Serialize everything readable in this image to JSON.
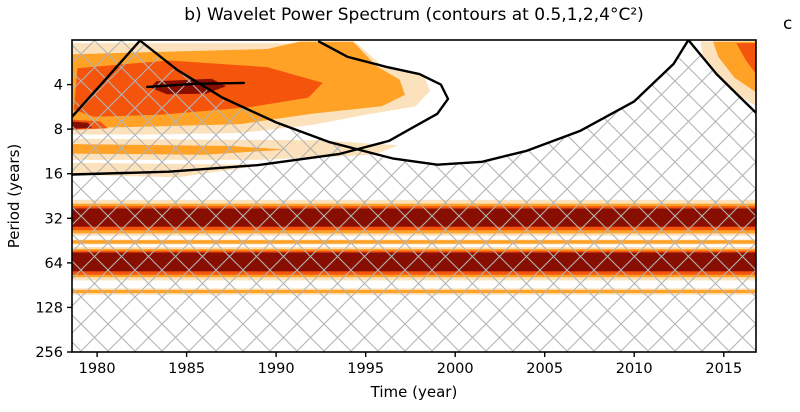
{
  "page": {
    "partial_next_panel_label": "c",
    "background_color": "#ffffff"
  },
  "chart_data": {
    "type": "heatmap",
    "subtype": "wavelet-power-spectrum-contour",
    "title": "b) Wavelet Power Spectrum (contours at 0.5,1,2,4°C²)",
    "xlabel": "Time (year)",
    "ylabel": "Period (years)",
    "x_ticks": [
      1980,
      1985,
      1990,
      1995,
      2000,
      2005,
      2010,
      2015
    ],
    "x_range": [
      1978.6,
      2016.8
    ],
    "y_ticks": [
      4,
      8,
      16,
      32,
      64,
      128,
      256
    ],
    "y_range": [
      2,
      256
    ],
    "y_scale": "log2",
    "y_axis_inverted": true,
    "contour_levels_degC2": [
      0.5,
      1,
      2,
      4
    ],
    "palette": {
      "0.5": "#FBE2BC",
      "1": "#FFA226",
      "2": "#F4540C",
      "4": "#870E00"
    },
    "hatch": {
      "style": "diagonal-crosshatch",
      "color": "#b3b3b3",
      "spacing_px": 27
    },
    "axis_color": "#000000",
    "grid": false,
    "legend": false,
    "bands_full_width": [
      {
        "level": "0.5",
        "period_range": [
          24,
          42
        ]
      },
      {
        "level": "1",
        "period_range": [
          25.5,
          40.5
        ]
      },
      {
        "level": "2",
        "period_range": [
          26.5,
          38.5
        ]
      },
      {
        "level": "4",
        "period_range": [
          27.5,
          36.5
        ]
      },
      {
        "level": "0.5",
        "period_range": [
          44.5,
          48
        ]
      },
      {
        "level": "1",
        "period_range": [
          45,
          47.5
        ]
      },
      {
        "level": "0.5",
        "period_range": [
          50,
          84
        ]
      },
      {
        "level": "1",
        "period_range": [
          51.5,
          80
        ]
      },
      {
        "level": "2",
        "period_range": [
          53,
          77
        ]
      },
      {
        "level": "4",
        "period_range": [
          54.5,
          73
        ]
      },
      {
        "level": "0.5",
        "period_range": [
          95,
          105
        ]
      },
      {
        "level": "1",
        "period_range": [
          97.5,
          102.5
        ]
      }
    ],
    "blobs": [
      {
        "level": "0.5",
        "points": [
          [
            1978.6,
            2.1
          ],
          [
            1994.5,
            2.1
          ],
          [
            1995.8,
            2.9
          ],
          [
            1998.2,
            3.4
          ],
          [
            1998.6,
            4.4
          ],
          [
            1997.8,
            5.6
          ],
          [
            1995,
            6.4
          ],
          [
            1992,
            7.5
          ],
          [
            1988,
            8.5
          ],
          [
            1983,
            8.7
          ],
          [
            1978.6,
            8.7
          ]
        ]
      },
      {
        "level": "0.5",
        "points": [
          [
            1978.6,
            9.3
          ],
          [
            1992.5,
            9.5
          ],
          [
            1996.8,
            10.3
          ],
          [
            1995.5,
            11.9
          ],
          [
            1989,
            12.9
          ],
          [
            1978.6,
            12.9
          ]
        ]
      },
      {
        "level": "0.5",
        "points": [
          [
            1978.6,
            13.5
          ],
          [
            1989.5,
            13.9
          ],
          [
            1984.5,
            16.9
          ],
          [
            1978.6,
            16.3
          ]
        ]
      },
      {
        "level": "1",
        "points": [
          [
            1978.6,
            2.5
          ],
          [
            1989.5,
            2.3
          ],
          [
            1991.3,
            2.05
          ],
          [
            1994.3,
            2.05
          ],
          [
            1995.6,
            3.0
          ],
          [
            1996.9,
            3.7
          ],
          [
            1997.2,
            4.7
          ],
          [
            1995.9,
            5.6
          ],
          [
            1992,
            6.3
          ],
          [
            1988,
            7.4
          ],
          [
            1982.5,
            7.7
          ],
          [
            1978.6,
            7.9
          ]
        ]
      },
      {
        "level": "1",
        "points": [
          [
            1978.6,
            10.1
          ],
          [
            1987.5,
            10.4
          ],
          [
            1990.5,
            11.0
          ],
          [
            1986,
            11.9
          ],
          [
            1978.6,
            11.7
          ]
        ]
      },
      {
        "level": "2",
        "points": [
          [
            1978.9,
            3.1
          ],
          [
            1984,
            2.75
          ],
          [
            1989.5,
            3.05
          ],
          [
            1992.6,
            3.9
          ],
          [
            1991.8,
            4.9
          ],
          [
            1988.5,
            5.7
          ],
          [
            1983.5,
            6.4
          ],
          [
            1979.8,
            6.6
          ],
          [
            1978.7,
            5.9
          ]
        ]
      },
      {
        "level": "2",
        "points": [
          [
            1978.6,
            6.9
          ],
          [
            1980.2,
            7.1
          ],
          [
            1980.6,
            7.9
          ],
          [
            1978.6,
            8.1
          ]
        ]
      },
      {
        "level": "4",
        "points": [
          [
            1983.3,
            3.8
          ],
          [
            1986.4,
            3.65
          ],
          [
            1987.2,
            4.1
          ],
          [
            1986.1,
            4.6
          ],
          [
            1983.9,
            4.65
          ],
          [
            1983.0,
            4.2
          ]
        ]
      },
      {
        "level": "4",
        "points": [
          [
            1978.6,
            7.1
          ],
          [
            1979.5,
            7.25
          ],
          [
            1979.7,
            7.85
          ],
          [
            1978.6,
            7.95
          ]
        ]
      },
      {
        "level": "0.5",
        "points": [
          [
            2013.7,
            2.05
          ],
          [
            2016.8,
            2.05
          ],
          [
            2016.8,
            5.6
          ],
          [
            2015.7,
            4.6
          ],
          [
            2014.4,
            3.2
          ],
          [
            2013.8,
            2.5
          ]
        ]
      },
      {
        "level": "1",
        "points": [
          [
            2014.4,
            2.05
          ],
          [
            2016.8,
            2.05
          ],
          [
            2016.8,
            4.5
          ],
          [
            2015.6,
            3.6
          ],
          [
            2014.7,
            2.6
          ]
        ]
      },
      {
        "level": "2",
        "points": [
          [
            2015.7,
            2.1
          ],
          [
            2016.8,
            2.1
          ],
          [
            2016.8,
            3.4
          ],
          [
            2016.2,
            2.7
          ]
        ]
      }
    ],
    "unhatched_regions": [
      {
        "name": "cone-interior",
        "points": [
          [
            1982.3,
            2.0
          ],
          [
            1984.5,
            3.2
          ],
          [
            1987,
            4.9
          ],
          [
            1990,
            7.2
          ],
          [
            1993,
            9.8
          ],
          [
            1996.5,
            12.6
          ],
          [
            1999,
            13.9
          ],
          [
            2001.5,
            13.3
          ],
          [
            2004,
            11.2
          ],
          [
            2007,
            8.2
          ],
          [
            2010,
            5.2
          ],
          [
            2012.2,
            2.9
          ],
          [
            2013.0,
            2.0
          ]
        ]
      },
      {
        "name": "top-right-corner",
        "points": [
          [
            2013.1,
            2.0
          ],
          [
            2014.6,
            3.4
          ],
          [
            2016.0,
            5.0
          ],
          [
            2016.8,
            6.2
          ],
          [
            2016.8,
            2.0
          ]
        ]
      }
    ],
    "contour_lines": [
      {
        "name": "cone-of-influence",
        "points": [
          [
            1978.6,
            6.6
          ],
          [
            1980.3,
            3.9
          ],
          [
            1982.4,
            2.02
          ],
          [
            1984.5,
            3.2
          ],
          [
            1987,
            4.9
          ],
          [
            1990,
            7.2
          ],
          [
            1993,
            9.8
          ],
          [
            1996.5,
            12.6
          ],
          [
            1999,
            13.9
          ],
          [
            2001.5,
            13.3
          ],
          [
            2004,
            11.2
          ],
          [
            2007,
            8.2
          ],
          [
            2010,
            5.2
          ],
          [
            2012.2,
            2.9
          ],
          [
            2013.0,
            2.02
          ]
        ]
      },
      {
        "name": "significance-contour",
        "points": [
          [
            1978.6,
            16.2
          ],
          [
            1984,
            15.5
          ],
          [
            1989,
            14.0
          ],
          [
            1993.5,
            11.8
          ],
          [
            1996.3,
            9.6
          ],
          [
            1997.8,
            7.6
          ],
          [
            1999.0,
            6.3
          ],
          [
            1999.6,
            5.0
          ],
          [
            1999.2,
            4.0
          ],
          [
            1998.0,
            3.4
          ],
          [
            1996.2,
            3.05
          ],
          [
            1994.0,
            2.6
          ],
          [
            1992.4,
            2.05
          ]
        ]
      },
      {
        "name": "corner-contour",
        "points": [
          [
            2013.1,
            2.05
          ],
          [
            2014.6,
            3.4
          ],
          [
            2016.0,
            5.0
          ],
          [
            2016.8,
            6.2
          ]
        ]
      },
      {
        "name": "core-contour-segment",
        "points": [
          [
            1982.8,
            4.15
          ],
          [
            1985.5,
            3.95
          ],
          [
            1988.2,
            3.9
          ]
        ]
      }
    ]
  }
}
